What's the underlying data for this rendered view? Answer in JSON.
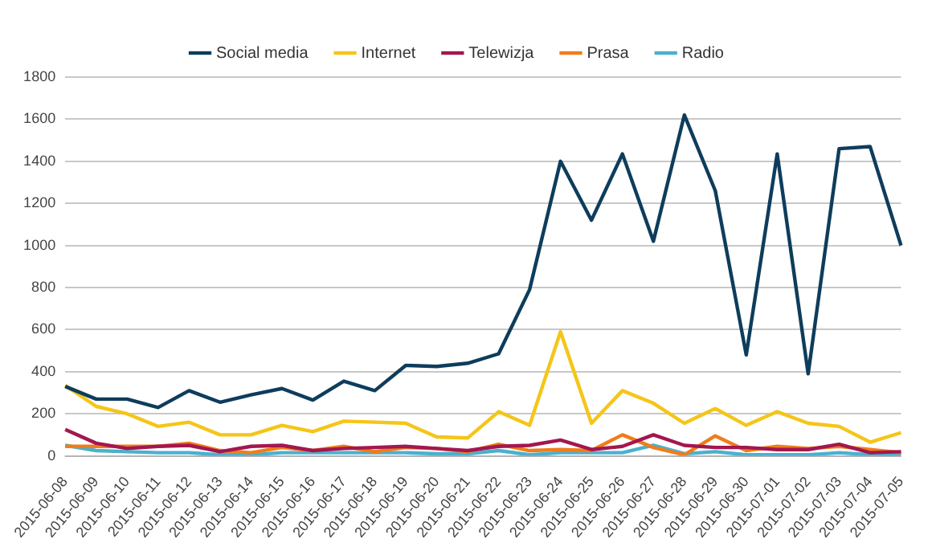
{
  "chart_data": {
    "type": "line",
    "categories": [
      "2015-06-08",
      "2015-06-09",
      "2015-06-10",
      "2015-06-11",
      "2015-06-12",
      "2015-06-13",
      "2015-06-14",
      "2015-06-15",
      "2015-06-16",
      "2015-06-17",
      "2015-06-18",
      "2015-06-19",
      "2015-06-20",
      "2015-06-21",
      "2015-06-22",
      "2015-06-23",
      "2015-06-24",
      "2015-06-25",
      "2015-06-26",
      "2015-06-27",
      "2015-06-28",
      "2015-06-29",
      "2015-06-30",
      "2015-07-01",
      "2015-07-02",
      "2015-07-03",
      "2015-07-04",
      "2015-07-05"
    ],
    "series": [
      {
        "name": "Social media",
        "color": "#0e3d5c",
        "values": [
          330,
          270,
          270,
          230,
          310,
          255,
          290,
          320,
          265,
          355,
          310,
          430,
          425,
          440,
          485,
          790,
          1400,
          1120,
          1435,
          1020,
          1620,
          1260,
          480,
          1435,
          390,
          1460,
          1470,
          1000
        ]
      },
      {
        "name": "Internet",
        "color": "#f5c518",
        "values": [
          335,
          235,
          200,
          140,
          160,
          100,
          100,
          145,
          115,
          165,
          160,
          155,
          90,
          85,
          210,
          145,
          590,
          155,
          310,
          250,
          155,
          225,
          145,
          210,
          155,
          140,
          65,
          110
        ]
      },
      {
        "name": "Telewizja",
        "color": "#a3174f",
        "values": [
          125,
          60,
          35,
          45,
          50,
          20,
          45,
          50,
          25,
          35,
          40,
          45,
          35,
          25,
          45,
          50,
          75,
          30,
          45,
          100,
          50,
          40,
          40,
          30,
          30,
          55,
          15,
          20
        ]
      },
      {
        "name": "Prasa",
        "color": "#f07d1a",
        "values": [
          45,
          45,
          45,
          45,
          60,
          25,
          15,
          40,
          25,
          45,
          20,
          40,
          35,
          20,
          55,
          25,
          30,
          25,
          100,
          40,
          5,
          95,
          25,
          45,
          35,
          45,
          30,
          15
        ]
      },
      {
        "name": "Radio",
        "color": "#4bb0cf",
        "values": [
          50,
          25,
          20,
          15,
          15,
          5,
          5,
          15,
          15,
          15,
          15,
          15,
          10,
          10,
          25,
          5,
          15,
          15,
          15,
          50,
          10,
          20,
          5,
          5,
          5,
          15,
          5,
          5
        ]
      }
    ],
    "ylim": [
      0,
      1800
    ],
    "yticks": [
      0,
      200,
      400,
      600,
      800,
      1000,
      1200,
      1400,
      1600,
      1800
    ],
    "grid": "y",
    "legend": "top",
    "marker": "none",
    "line_style": "solid"
  }
}
